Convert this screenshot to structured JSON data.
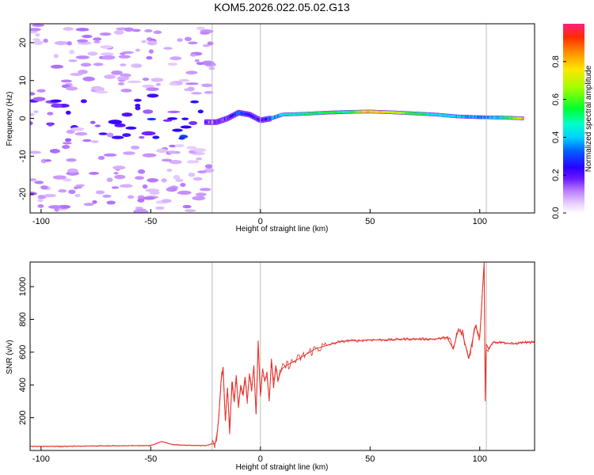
{
  "figure_title": "KOM5.2026.022.05.02.G13",
  "chart_data": [
    {
      "type": "heatmap",
      "title": "KOM5.2026.022.05.02.G13",
      "xlabel": "Height of straight line (km)",
      "ylabel": "Frequency (Hz)",
      "xlim": [
        -105,
        125
      ],
      "ylim": [
        -25,
        25
      ],
      "xticks": [
        -100,
        -50,
        0,
        50,
        100
      ],
      "yticks": [
        -20,
        -10,
        0,
        10,
        20
      ],
      "colorbar": {
        "label": "Normalized spectral amplitude",
        "range": [
          0.0,
          1.0
        ],
        "ticks": [
          0.0,
          0.2,
          0.4,
          0.6,
          0.8
        ],
        "tick_labels": [
          "0.0",
          "0.2",
          "0.4",
          "0.6",
          "0.8"
        ]
      },
      "ridge": {
        "description": "narrow dominant frequency line with normalized amplitude",
        "x": [
          -25,
          -20,
          -15,
          -10,
          -5,
          0,
          5,
          10,
          20,
          30,
          40,
          50,
          60,
          70,
          80,
          90,
          100,
          110,
          120
        ],
        "frequency": [
          -1.0,
          -1.0,
          0.0,
          1.5,
          1.0,
          -0.5,
          0.0,
          1.0,
          1.2,
          1.5,
          1.7,
          1.8,
          1.6,
          1.3,
          1.0,
          0.5,
          0.3,
          0.2,
          0.0
        ],
        "amplitude": [
          0.15,
          0.12,
          0.18,
          0.35,
          0.25,
          0.2,
          0.35,
          0.45,
          0.5,
          0.55,
          0.48,
          0.82,
          0.7,
          0.55,
          0.45,
          0.42,
          0.35,
          0.45,
          0.8
        ]
      },
      "noise_region": {
        "description": "scattered low-amplitude noise blobs",
        "x_range": [
          -105,
          -22
        ],
        "amplitude": 0.05
      },
      "x_markers": [
        -22,
        0,
        103
      ]
    },
    {
      "type": "line",
      "xlabel": "Height of straight line (km)",
      "ylabel": "SNR (v/v)",
      "xlim": [
        -105,
        125
      ],
      "ylim": [
        0,
        1150
      ],
      "xticks": [
        -100,
        -50,
        0,
        50,
        100
      ],
      "yticks": [
        200,
        400,
        600,
        800,
        1000
      ],
      "color": "#e4322b",
      "series": [
        {
          "name": "SNR",
          "x": [
            -105,
            -90,
            -70,
            -50,
            -45,
            -40,
            -30,
            -25,
            -22,
            -21,
            -20,
            -19,
            -18,
            -17,
            -16,
            -15,
            -14,
            -13,
            -12,
            -11,
            -10,
            -9,
            -8,
            -7,
            -6,
            -5,
            -4,
            -3,
            -2,
            -1,
            0,
            1,
            2,
            3,
            4,
            5,
            6,
            7,
            8,
            9,
            10,
            12,
            15,
            20,
            25,
            30,
            35,
            40,
            45,
            50,
            55,
            60,
            65,
            70,
            75,
            80,
            85,
            88,
            90,
            92,
            95,
            98,
            100,
            101,
            102,
            102.5,
            103,
            104,
            106,
            110,
            115,
            120,
            125
          ],
          "y": [
            25,
            25,
            28,
            30,
            55,
            35,
            30,
            30,
            40,
            40,
            60,
            200,
            420,
            510,
            180,
            380,
            100,
            420,
            300,
            460,
            260,
            400,
            340,
            450,
            300,
            470,
            360,
            520,
            220,
            670,
            330,
            500,
            420,
            480,
            300,
            560,
            380,
            520,
            430,
            470,
            500,
            520,
            540,
            580,
            620,
            640,
            660,
            670,
            670,
            675,
            675,
            675,
            680,
            680,
            680,
            680,
            690,
            620,
            730,
            720,
            560,
            760,
            690,
            920,
            1150,
            300,
            650,
            620,
            660,
            660,
            650,
            660,
            660
          ]
        }
      ],
      "x_markers": [
        -22,
        0,
        103
      ]
    }
  ]
}
